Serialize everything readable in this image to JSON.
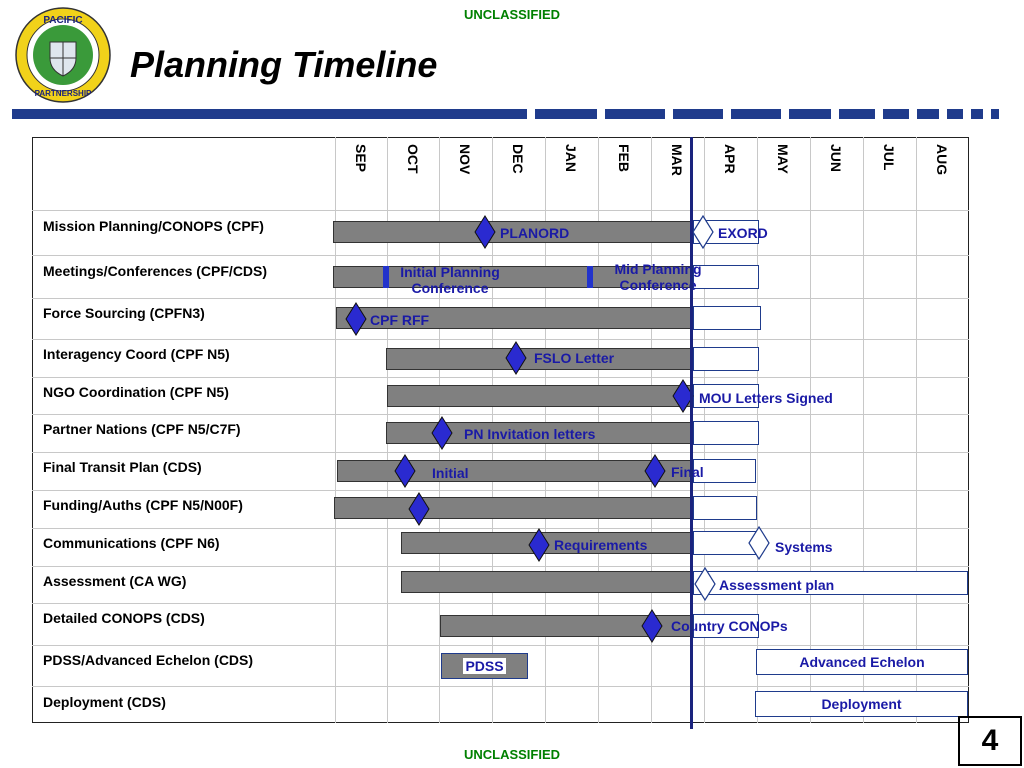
{
  "header": {
    "classification_top": "UNCLASSIFIED",
    "title": "Planning Timeline",
    "logo_top_text": "PACIFIC",
    "logo_bottom_text": "PARTNERSHIP"
  },
  "footer": {
    "classification_bottom": "UNCLASSIFIED",
    "page_number": "4"
  },
  "months": [
    "SEP",
    "OCT",
    "NOV",
    "DEC",
    "JAN",
    "FEB",
    "MAR",
    "APR",
    "MAY",
    "JUN",
    "JUL",
    "AUG"
  ],
  "rows": [
    "Mission Planning/CONOPS (CPF)",
    "Meetings/Conferences (CPF/CDS)",
    "Force Sourcing (CPFN3)",
    "Interagency Coord (CPF N5)",
    "NGO Coordination (CPF N5)",
    "Partner Nations (CPF N5/C7F)",
    "Final Transit Plan (CDS)",
    "Funding/Auths (CPF N5/N00F)",
    "Communications (CPF N6)",
    "Assessment (CA WG)",
    "Detailed CONOPS (CDS)",
    "PDSS/Advanced Echelon (CDS)",
    "Deployment (CDS)"
  ],
  "labels": {
    "planord": "PLANORD",
    "exord": "EXORD",
    "initial_planning_1": "Initial Planning",
    "initial_planning_2": "Conference",
    "mid_planning_1": "Mid Planning",
    "mid_planning_2": "Conference",
    "cpf_rff": "CPF RFF",
    "fslo_letter": "FSLO Letter",
    "mou_letters": "MOU Letters Signed",
    "pn_invitation": "PN Invitation letters",
    "initial": "Initial",
    "final": "Final",
    "requirements": "Requirements",
    "systems": "Systems",
    "assessment_plan": "Assessment plan",
    "country_conops": "Country CONOPs",
    "pdss": "PDSS",
    "advanced_echelon": "Advanced Echelon",
    "deployment": "Deployment"
  },
  "colors": {
    "classification": "#008000",
    "gray_bar": "#808080",
    "milestone": "#2a2ad0",
    "label_text": "#1a1aa6",
    "today_line": "#1a237e",
    "header_bar": "#1f3b8c"
  }
}
